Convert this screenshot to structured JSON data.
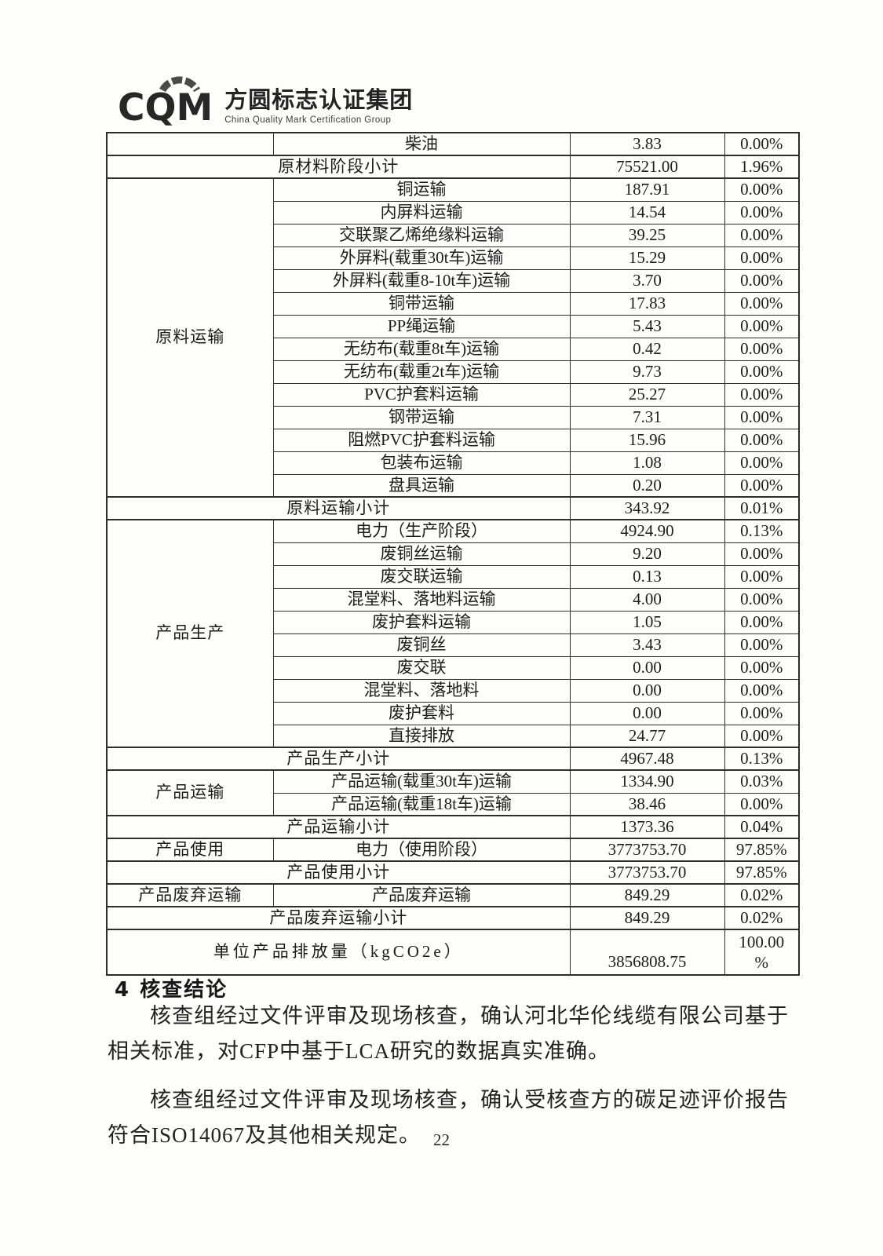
{
  "logo": {
    "acronym": "CQM",
    "name_cn": "方圆标志认证集团",
    "name_en": "China Quality Mark Certification Group"
  },
  "table": {
    "rows": [
      {
        "kind": "item",
        "group": {
          "label": "",
          "rowspan": 1
        },
        "label": "柴油",
        "value": "3.83",
        "pct": "0.00%"
      },
      {
        "kind": "subtotal",
        "label": "原材料阶段小计",
        "value": "75521.00",
        "pct": "1.96%"
      },
      {
        "kind": "item",
        "group": {
          "label": "原料运输",
          "rowspan": 14
        },
        "label": "铜运输",
        "value": "187.91",
        "pct": "0.00%"
      },
      {
        "kind": "item",
        "label": "内屏料运输",
        "value": "14.54",
        "pct": "0.00%"
      },
      {
        "kind": "item",
        "label": "交联聚乙烯绝缘料运输",
        "value": "39.25",
        "pct": "0.00%"
      },
      {
        "kind": "item",
        "label": "外屏料(载重30t车)运输",
        "value": "15.29",
        "pct": "0.00%"
      },
      {
        "kind": "item",
        "label": "外屏料(载重8-10t车)运输",
        "value": "3.70",
        "pct": "0.00%"
      },
      {
        "kind": "item",
        "label": "铜带运输",
        "value": "17.83",
        "pct": "0.00%"
      },
      {
        "kind": "item",
        "label": "PP绳运输",
        "value": "5.43",
        "pct": "0.00%"
      },
      {
        "kind": "item",
        "label": "无纺布(载重8t车)运输",
        "value": "0.42",
        "pct": "0.00%"
      },
      {
        "kind": "item",
        "label": "无纺布(载重2t车)运输",
        "value": "9.73",
        "pct": "0.00%"
      },
      {
        "kind": "item",
        "label": "PVC护套料运输",
        "value": "25.27",
        "pct": "0.00%"
      },
      {
        "kind": "item",
        "label": "钢带运输",
        "value": "7.31",
        "pct": "0.00%"
      },
      {
        "kind": "item",
        "label": "阻燃PVC护套料运输",
        "value": "15.96",
        "pct": "0.00%"
      },
      {
        "kind": "item",
        "label": "包装布运输",
        "value": "1.08",
        "pct": "0.00%"
      },
      {
        "kind": "item",
        "label": "盘具运输",
        "value": "0.20",
        "pct": "0.00%"
      },
      {
        "kind": "subtotal",
        "label": "原料运输小计",
        "value": "343.92",
        "pct": "0.01%"
      },
      {
        "kind": "item",
        "group": {
          "label": "产品生产",
          "rowspan": 10
        },
        "label": "电力（生产阶段）",
        "value": "4924.90",
        "pct": "0.13%"
      },
      {
        "kind": "item",
        "label": "废铜丝运输",
        "value": "9.20",
        "pct": "0.00%"
      },
      {
        "kind": "item",
        "label": "废交联运输",
        "value": "0.13",
        "pct": "0.00%"
      },
      {
        "kind": "item",
        "label": "混堂料、落地料运输",
        "value": "4.00",
        "pct": "0.00%"
      },
      {
        "kind": "item",
        "label": "废护套料运输",
        "value": "1.05",
        "pct": "0.00%"
      },
      {
        "kind": "item",
        "label": "废铜丝",
        "value": "3.43",
        "pct": "0.00%"
      },
      {
        "kind": "item",
        "label": "废交联",
        "value": "0.00",
        "pct": "0.00%"
      },
      {
        "kind": "item",
        "label": "混堂料、落地料",
        "value": "0.00",
        "pct": "0.00%"
      },
      {
        "kind": "item",
        "label": "废护套料",
        "value": "0.00",
        "pct": "0.00%"
      },
      {
        "kind": "item",
        "label": "直接排放",
        "value": "24.77",
        "pct": "0.00%"
      },
      {
        "kind": "subtotal",
        "label": "产品生产小计",
        "value": "4967.48",
        "pct": "0.13%"
      },
      {
        "kind": "item",
        "group": {
          "label": "产品运输",
          "rowspan": 2
        },
        "label": "产品运输(载重30t车)运输",
        "value": "1334.90",
        "pct": "0.03%"
      },
      {
        "kind": "item",
        "label": "产品运输(载重18t车)运输",
        "value": "38.46",
        "pct": "0.00%"
      },
      {
        "kind": "subtotal",
        "label": "产品运输小计",
        "value": "1373.36",
        "pct": "0.04%"
      },
      {
        "kind": "item",
        "group": {
          "label": "产品使用",
          "rowspan": 1
        },
        "label": "电力（使用阶段）",
        "value": "3773753.70",
        "pct": "97.85%"
      },
      {
        "kind": "subtotal",
        "label": "产品使用小计",
        "value": "3773753.70",
        "pct": "97.85%"
      },
      {
        "kind": "item",
        "group": {
          "label": "产品废弃运输",
          "rowspan": 1
        },
        "label": "产品废弃运输",
        "value": "849.29",
        "pct": "0.02%"
      },
      {
        "kind": "subtotal",
        "label": "产品废弃运输小计",
        "value": "849.29",
        "pct": "0.02%"
      },
      {
        "kind": "total",
        "label": "单位产品排放量（kgCO2e）",
        "value": "3856808.75",
        "pct": "100.00\n%"
      }
    ]
  },
  "section": {
    "heading_number": "4",
    "heading_text": "核查结论",
    "paragraph1": "核查组经过文件评审及现场核查，确认河北华伦线缆有限公司基于相关标准，对CFP中基于LCA研究的数据真实准确。",
    "paragraph2": "核查组经过文件评审及现场核查，确认受核查方的碳足迹评价报告符合ISO14067及其他相关规定。"
  },
  "page_number": "22"
}
